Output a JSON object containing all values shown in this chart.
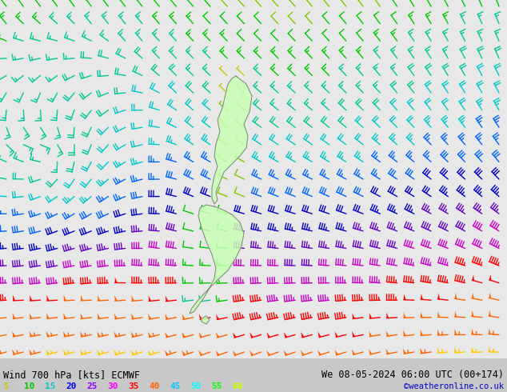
{
  "title_left": "Wind 700 hPa [kts] ECMWF",
  "title_right": "We 08-05-2024 06:00 UTC (00+174)",
  "copyright": "©weatheronline.co.uk",
  "legend_values": [
    5,
    10,
    15,
    20,
    25,
    30,
    35,
    40,
    45,
    50,
    55,
    60
  ],
  "legend_colors": [
    "#c8c800",
    "#00c800",
    "#00c8c8",
    "#0000ff",
    "#8b00ff",
    "#ff00ff",
    "#ff0000",
    "#ff6400",
    "#00c8ff",
    "#00ffff",
    "#00ff00",
    "#c8ff00"
  ],
  "bg_color": "#e8e8e8",
  "fig_width": 6.34,
  "fig_height": 4.9,
  "dpi": 100,
  "bottom_bar_color": "#c8c8c8",
  "bottom_bar_height": 42,
  "nz_fill_color": "#c8ffb4",
  "nz_outline_color": "#808080"
}
